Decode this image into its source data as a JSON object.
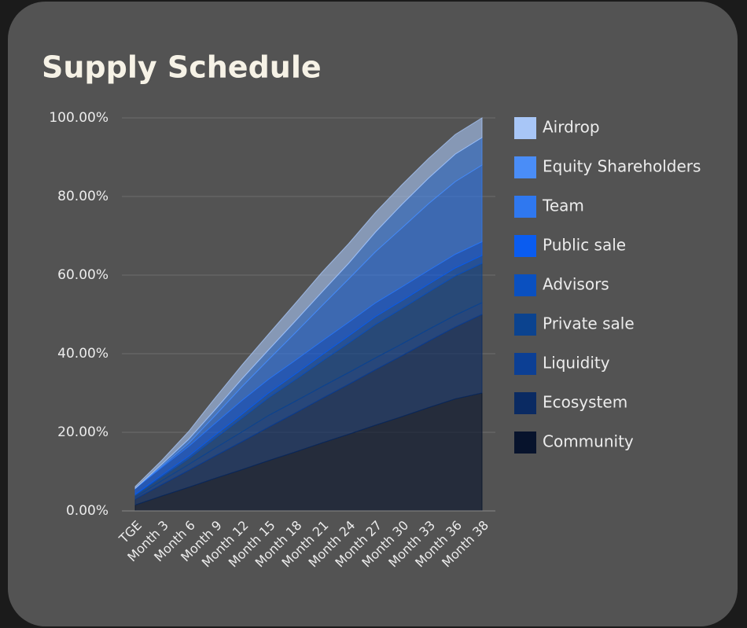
{
  "chart_data": {
    "type": "stacked_area",
    "title": "Supply Schedule",
    "categories": [
      "TGE",
      "Month 3",
      "Month 6",
      "Month 9",
      "Month 12",
      "Month 15",
      "Month 18",
      "Month 21",
      "Month 24",
      "Month 27",
      "Month 30",
      "Month 33",
      "Month 36",
      "Month 38"
    ],
    "series": [
      {
        "name": "Airdrop",
        "color": "#a8c6f7",
        "values": [
          0.5,
          1,
          2,
          3,
          3.5,
          4,
          4.5,
          5,
          5,
          5,
          5,
          5,
          5,
          5
        ]
      },
      {
        "name": "Equity Shareholders",
        "color": "#4a8df7",
        "values": [
          0,
          0.5,
          1,
          1.5,
          2,
          2.5,
          3,
          3.5,
          4,
          5,
          6,
          6.5,
          7,
          7
        ]
      },
      {
        "name": "Team",
        "color": "#2f78f0",
        "values": [
          0,
          0.3,
          0.8,
          2,
          3.5,
          5,
          7,
          9,
          11,
          13,
          15,
          17,
          18.5,
          19.5
        ]
      },
      {
        "name": "Public sale",
        "color": "#0a5cf0",
        "values": [
          1.5,
          2,
          2.5,
          3,
          3.5,
          3.5,
          3.5,
          3.5,
          3.5,
          3.5,
          3.5,
          3.5,
          3.5,
          3.5
        ]
      },
      {
        "name": "Advisors",
        "color": "#0a50c0",
        "values": [
          0.2,
          0.4,
          0.6,
          0.8,
          1,
          1.2,
          1.4,
          1.6,
          1.8,
          2,
          2,
          2,
          2,
          2
        ]
      },
      {
        "name": "Private sale",
        "color": "#0b438f",
        "values": [
          0.5,
          1,
          1.5,
          2.5,
          3.5,
          4.5,
          5.5,
          6.5,
          7.5,
          8.5,
          9,
          9.5,
          10,
          10
        ]
      },
      {
        "name": "Liquidity",
        "color": "#0c3f94",
        "values": [
          0.5,
          1,
          1.5,
          2,
          2.5,
          3,
          3,
          3,
          3,
          3,
          3,
          3,
          3,
          3
        ]
      },
      {
        "name": "Ecosystem",
        "color": "#0a2a62",
        "values": [
          1.5,
          2.9,
          4.3,
          5.7,
          7.1,
          8.5,
          9.9,
          11.3,
          12.7,
          14.1,
          15.5,
          16.9,
          18.3,
          20
        ]
      },
      {
        "name": "Community",
        "color": "#07132c",
        "values": [
          1.5,
          3.8,
          6,
          8.3,
          10.5,
          12.8,
          15,
          17.3,
          19.5,
          21.8,
          24,
          26.3,
          28.5,
          30
        ]
      }
    ],
    "ylim": [
      0,
      100
    ],
    "yticks": [
      {
        "value": 0,
        "label": "0.00%"
      },
      {
        "value": 20,
        "label": "20.00%"
      },
      {
        "value": 40,
        "label": "40.00%"
      },
      {
        "value": 60,
        "label": "60.00%"
      },
      {
        "value": 80,
        "label": "80.00%"
      },
      {
        "value": 100,
        "label": "100.00%"
      }
    ],
    "grid": true,
    "legend": "right"
  }
}
